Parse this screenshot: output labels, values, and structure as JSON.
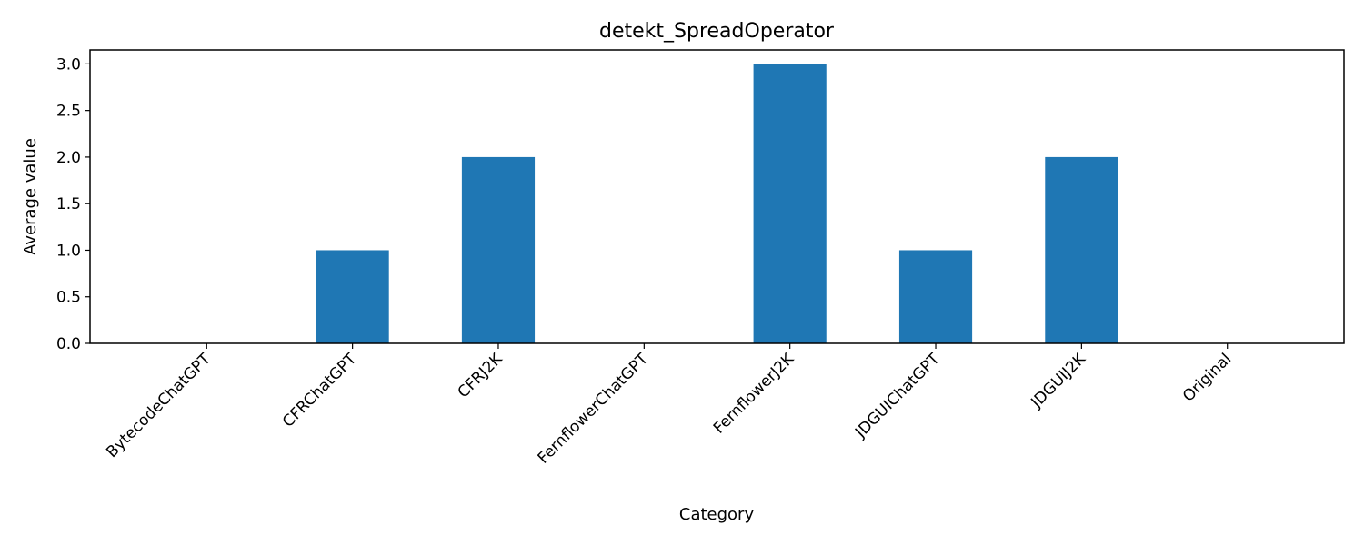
{
  "chart_data": {
    "type": "bar",
    "title": "detekt_SpreadOperator",
    "xlabel": "Category",
    "ylabel": "Average value",
    "categories": [
      "BytecodeChatGPT",
      "CFRChatGPT",
      "CFRJ2K",
      "FernflowerChatGPT",
      "FernflowerJ2K",
      "JDGUIChatGPT",
      "JDGUIJ2K",
      "Original"
    ],
    "values": [
      0,
      1,
      2,
      0,
      3,
      1,
      2,
      0
    ],
    "ylim": [
      0,
      3.15
    ],
    "yticks": [
      "0.0",
      "0.5",
      "1.0",
      "1.5",
      "2.0",
      "2.5",
      "3.0"
    ],
    "ytick_values": [
      0,
      0.5,
      1,
      1.5,
      2,
      2.5,
      3
    ],
    "grid": false,
    "legend": "none",
    "bar_color": "#1f77b4"
  }
}
